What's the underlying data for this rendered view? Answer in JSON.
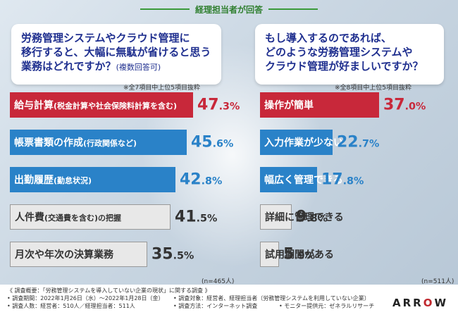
{
  "header": {
    "label": "経理担当者が回答"
  },
  "left": {
    "question_lines": [
      "労務管理システムやクラウド管理に",
      "移行すると、大幅に無駄が省けると思う",
      "業務はどれですか？"
    ],
    "question_sub": "(複数回答可)",
    "note": "※全7項目中上位5項目抜粋",
    "n": "(n=465人)"
  },
  "right": {
    "question_lines": [
      "もし導入するのであれば、",
      "どのような労務管理システムや",
      "クラウド管理が好ましいですか？"
    ],
    "note": "※全8項目中上位5項目抜粋",
    "n": "(n=511人)"
  },
  "chart_data": [
    {
      "type": "bar",
      "orientation": "horizontal",
      "categories": [
        "給与計算(税金計算や社会保険料計算を含む)",
        "帳票書類の作成(行政関係など)",
        "出勤履歴(勤怠状況)",
        "人件費(交通費を含む)の把握",
        "月次や年次の決算業務"
      ],
      "values": [
        47.3,
        45.6,
        42.8,
        41.5,
        35.5
      ],
      "unit": "%",
      "xlim": [
        0,
        60
      ]
    },
    {
      "type": "bar",
      "orientation": "horizontal",
      "categories": [
        "操作が簡単",
        "入力作業が少ない",
        "幅広く管理できる",
        "詳細に管理できる",
        "試用期間がある"
      ],
      "values": [
        37.0,
        22.7,
        17.8,
        9.8,
        5.9
      ],
      "unit": "%",
      "xlim": [
        0,
        45
      ]
    }
  ],
  "bar_labels_left": [
    {
      "main": "給与計算",
      "sub": "(税金計算や社会保険料計算を含む)"
    },
    {
      "main": "帳票書類の作成",
      "sub": "(行政関係など)"
    },
    {
      "main": "出勤履歴",
      "sub": "(勤怠状況)"
    },
    {
      "main": "人件費",
      "sub": "(交通費を含む)の把握"
    },
    {
      "main": "月次や年次の決算業務",
      "sub": ""
    }
  ],
  "colors": {
    "rank1": "#c8283a",
    "rank2_3": "#2a82c8",
    "rank4_5": "#e8e8e8",
    "dark_text": "#333333"
  },
  "footer": {
    "line1": "《 調査概要：「労務管理システムを導入していない企業の現状」に関する調査 》",
    "col1": [
      "• 調査期間：2022年1月26日（水）〜2022年1月28日（金）",
      "• 調査人数：経営者：510人／経理担当者：511人"
    ],
    "col2": [
      "• 調査対象：経営者、経理担当者（労務管理システムを利用していない企業）",
      "• 調査方法：インターネット調査"
    ],
    "col3": [
      "",
      "• モニター提供元：ゼネラルリサーチ"
    ],
    "logo": "ARROW"
  }
}
